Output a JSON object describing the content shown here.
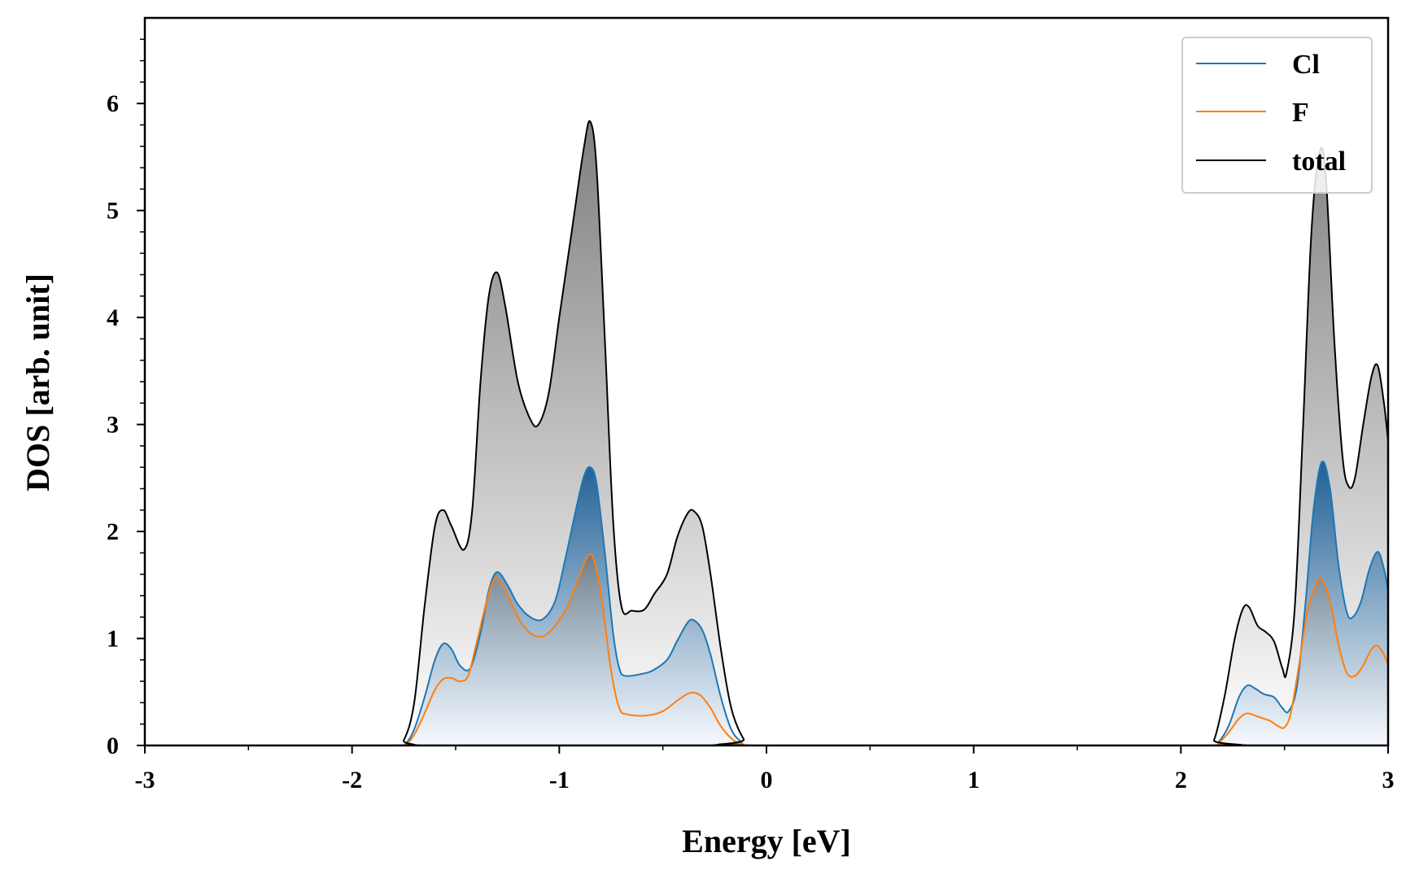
{
  "chart_data": {
    "type": "area",
    "xlabel": "Energy [eV]",
    "ylabel": "DOS [arb. unit]",
    "xlim": [
      -3,
      3
    ],
    "ylim": [
      0,
      6.8
    ],
    "x_ticks": [
      -3,
      -2,
      -1,
      0,
      1,
      2,
      3
    ],
    "x_tick_labels": [
      "-3",
      "-2",
      "-1",
      "0",
      "1",
      "2",
      "3"
    ],
    "y_ticks": [
      0,
      1,
      2,
      3,
      4,
      5,
      6
    ],
    "y_tick_labels": [
      "0",
      "1",
      "2",
      "3",
      "4",
      "5",
      "6"
    ],
    "grid": false,
    "legend_position": "top-right",
    "series": [
      {
        "name": "Cl",
        "color": "#1f77b4",
        "points": [
          [
            -3.0,
            0
          ],
          [
            -1.78,
            0
          ],
          [
            -1.74,
            0.02
          ],
          [
            -1.7,
            0.15
          ],
          [
            -1.65,
            0.45
          ],
          [
            -1.6,
            0.8
          ],
          [
            -1.56,
            0.95
          ],
          [
            -1.52,
            0.9
          ],
          [
            -1.48,
            0.75
          ],
          [
            -1.43,
            0.72
          ],
          [
            -1.38,
            1.05
          ],
          [
            -1.34,
            1.45
          ],
          [
            -1.3,
            1.62
          ],
          [
            -1.25,
            1.5
          ],
          [
            -1.2,
            1.32
          ],
          [
            -1.14,
            1.2
          ],
          [
            -1.08,
            1.18
          ],
          [
            -1.02,
            1.35
          ],
          [
            -0.97,
            1.75
          ],
          [
            -0.92,
            2.2
          ],
          [
            -0.88,
            2.52
          ],
          [
            -0.85,
            2.6
          ],
          [
            -0.82,
            2.45
          ],
          [
            -0.78,
            1.8
          ],
          [
            -0.74,
            1.05
          ],
          [
            -0.71,
            0.72
          ],
          [
            -0.68,
            0.65
          ],
          [
            -0.6,
            0.67
          ],
          [
            -0.55,
            0.7
          ],
          [
            -0.48,
            0.8
          ],
          [
            -0.43,
            0.98
          ],
          [
            -0.38,
            1.15
          ],
          [
            -0.35,
            1.17
          ],
          [
            -0.31,
            1.08
          ],
          [
            -0.27,
            0.85
          ],
          [
            -0.22,
            0.45
          ],
          [
            -0.17,
            0.15
          ],
          [
            -0.12,
            0.03
          ],
          [
            -0.08,
            0
          ],
          [
            2.14,
            0
          ],
          [
            2.18,
            0.03
          ],
          [
            2.23,
            0.18
          ],
          [
            2.28,
            0.45
          ],
          [
            2.32,
            0.56
          ],
          [
            2.36,
            0.53
          ],
          [
            2.4,
            0.48
          ],
          [
            2.45,
            0.45
          ],
          [
            2.49,
            0.35
          ],
          [
            2.52,
            0.32
          ],
          [
            2.56,
            0.55
          ],
          [
            2.6,
            1.3
          ],
          [
            2.64,
            2.2
          ],
          [
            2.68,
            2.65
          ],
          [
            2.72,
            2.4
          ],
          [
            2.76,
            1.7
          ],
          [
            2.8,
            1.25
          ],
          [
            2.83,
            1.2
          ],
          [
            2.87,
            1.35
          ],
          [
            2.91,
            1.65
          ],
          [
            2.95,
            1.81
          ],
          [
            2.98,
            1.65
          ],
          [
            3.0,
            1.45
          ]
        ]
      },
      {
        "name": "F",
        "color": "#ff7f0e",
        "points": [
          [
            -3.0,
            0
          ],
          [
            -1.78,
            0
          ],
          [
            -1.74,
            0.01
          ],
          [
            -1.7,
            0.1
          ],
          [
            -1.65,
            0.3
          ],
          [
            -1.6,
            0.52
          ],
          [
            -1.56,
            0.62
          ],
          [
            -1.52,
            0.63
          ],
          [
            -1.48,
            0.6
          ],
          [
            -1.44,
            0.65
          ],
          [
            -1.4,
            0.95
          ],
          [
            -1.35,
            1.35
          ],
          [
            -1.31,
            1.56
          ],
          [
            -1.26,
            1.45
          ],
          [
            -1.2,
            1.2
          ],
          [
            -1.14,
            1.05
          ],
          [
            -1.08,
            1.02
          ],
          [
            -1.02,
            1.12
          ],
          [
            -0.96,
            1.3
          ],
          [
            -0.9,
            1.6
          ],
          [
            -0.86,
            1.78
          ],
          [
            -0.83,
            1.72
          ],
          [
            -0.79,
            1.3
          ],
          [
            -0.75,
            0.7
          ],
          [
            -0.71,
            0.35
          ],
          [
            -0.67,
            0.29
          ],
          [
            -0.58,
            0.28
          ],
          [
            -0.5,
            0.32
          ],
          [
            -0.43,
            0.42
          ],
          [
            -0.37,
            0.49
          ],
          [
            -0.32,
            0.47
          ],
          [
            -0.27,
            0.35
          ],
          [
            -0.22,
            0.18
          ],
          [
            -0.16,
            0.05
          ],
          [
            -0.11,
            0.01
          ],
          [
            -0.08,
            0
          ],
          [
            2.14,
            0
          ],
          [
            2.18,
            0.02
          ],
          [
            2.23,
            0.12
          ],
          [
            2.28,
            0.25
          ],
          [
            2.32,
            0.3
          ],
          [
            2.37,
            0.27
          ],
          [
            2.43,
            0.23
          ],
          [
            2.47,
            0.18
          ],
          [
            2.5,
            0.17
          ],
          [
            2.53,
            0.3
          ],
          [
            2.57,
            0.75
          ],
          [
            2.61,
            1.25
          ],
          [
            2.65,
            1.5
          ],
          [
            2.68,
            1.55
          ],
          [
            2.72,
            1.35
          ],
          [
            2.76,
            0.95
          ],
          [
            2.8,
            0.68
          ],
          [
            2.84,
            0.65
          ],
          [
            2.88,
            0.75
          ],
          [
            2.92,
            0.9
          ],
          [
            2.95,
            0.93
          ],
          [
            2.98,
            0.85
          ],
          [
            3.0,
            0.76
          ]
        ]
      },
      {
        "name": "total",
        "color": "#000000",
        "points": [
          [
            -3.0,
            0
          ],
          [
            -1.8,
            0
          ],
          [
            -1.75,
            0.05
          ],
          [
            -1.7,
            0.4
          ],
          [
            -1.65,
            1.3
          ],
          [
            -1.6,
            2.05
          ],
          [
            -1.56,
            2.2
          ],
          [
            -1.52,
            2.05
          ],
          [
            -1.46,
            1.83
          ],
          [
            -1.42,
            2.2
          ],
          [
            -1.38,
            3.4
          ],
          [
            -1.34,
            4.2
          ],
          [
            -1.3,
            4.42
          ],
          [
            -1.26,
            4.1
          ],
          [
            -1.2,
            3.4
          ],
          [
            -1.14,
            3.05
          ],
          [
            -1.1,
            3.0
          ],
          [
            -1.05,
            3.3
          ],
          [
            -1.0,
            4.0
          ],
          [
            -0.94,
            4.8
          ],
          [
            -0.88,
            5.6
          ],
          [
            -0.85,
            5.83
          ],
          [
            -0.82,
            5.4
          ],
          [
            -0.78,
            3.8
          ],
          [
            -0.74,
            2.1
          ],
          [
            -0.7,
            1.3
          ],
          [
            -0.65,
            1.26
          ],
          [
            -0.59,
            1.27
          ],
          [
            -0.54,
            1.42
          ],
          [
            -0.48,
            1.6
          ],
          [
            -0.43,
            1.95
          ],
          [
            -0.38,
            2.17
          ],
          [
            -0.35,
            2.19
          ],
          [
            -0.31,
            2.05
          ],
          [
            -0.27,
            1.6
          ],
          [
            -0.22,
            0.9
          ],
          [
            -0.17,
            0.35
          ],
          [
            -0.11,
            0.06
          ],
          [
            -0.06,
            0
          ],
          [
            2.12,
            0
          ],
          [
            2.16,
            0.05
          ],
          [
            2.21,
            0.45
          ],
          [
            2.26,
            1.0
          ],
          [
            2.3,
            1.28
          ],
          [
            2.33,
            1.29
          ],
          [
            2.37,
            1.12
          ],
          [
            2.41,
            1.06
          ],
          [
            2.45,
            0.97
          ],
          [
            2.49,
            0.72
          ],
          [
            2.51,
            0.68
          ],
          [
            2.55,
            1.3
          ],
          [
            2.59,
            3.0
          ],
          [
            2.63,
            4.8
          ],
          [
            2.67,
            5.55
          ],
          [
            2.7,
            5.3
          ],
          [
            2.74,
            3.8
          ],
          [
            2.78,
            2.7
          ],
          [
            2.81,
            2.42
          ],
          [
            2.84,
            2.5
          ],
          [
            2.88,
            3.0
          ],
          [
            2.92,
            3.45
          ],
          [
            2.95,
            3.55
          ],
          [
            2.98,
            3.2
          ],
          [
            3.0,
            2.85
          ]
        ]
      }
    ]
  }
}
